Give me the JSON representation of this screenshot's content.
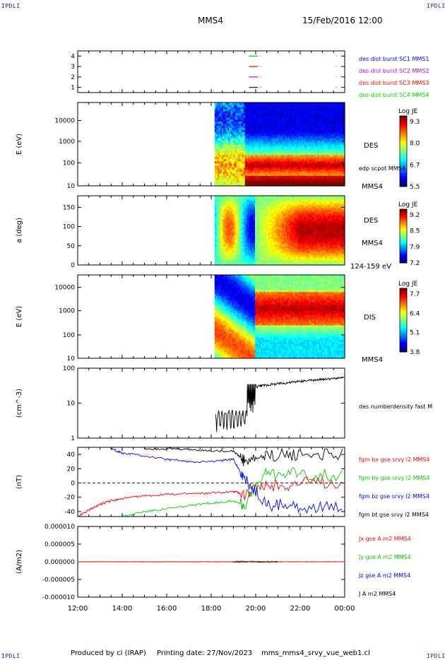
{
  "header": {
    "logo_left": "IPDLI",
    "logo_right": "IPDLI",
    "spacecraft": "MMS4",
    "datetime": "15/Feb/2016 12:00"
  },
  "footer": {
    "produced": "Produced by cl (IRAP)",
    "printing": "Printing date: 27/Nov/2023",
    "file": "mms_mms4_srvy_vue_web1.cl"
  },
  "colors": {
    "blue": "#0000ff",
    "magenta": "#d000d0",
    "red": "#ff0000",
    "green": "#00cc00",
    "black": "#000000"
  },
  "time_axis": {
    "ticks": [
      "12:00",
      "14:00",
      "16:00",
      "18:00",
      "20:00",
      "22:00",
      "00:00"
    ],
    "range_hours": [
      0,
      12
    ]
  },
  "chart_data": [
    {
      "type": "line",
      "id": "burst",
      "ylim": [
        0.5,
        4.5
      ],
      "yticks": [
        "1",
        "2",
        "3",
        "4"
      ],
      "legend": [
        {
          "text": "des dist burst SC1 MMS1",
          "color": "#0000ff"
        },
        {
          "text": "des dist burst SC2 MMS2",
          "color": "#d000d0"
        },
        {
          "text": "des dist burst SC3 MMS3",
          "color": "#ff0000"
        },
        {
          "text": "des dist burst SC4 MMS4",
          "color": "#00cc00"
        }
      ]
    },
    {
      "type": "heatmap",
      "id": "des-energy",
      "ylabel": "E (eV)",
      "yticks": [
        "10",
        "100",
        "1000",
        "10000"
      ],
      "label": "DES",
      "sublabel": "edp scpot MMS4",
      "bottom_label": "MMS4",
      "colorbar": {
        "title": "Log JE",
        "ticks": [
          "9.3",
          "8.0",
          "6.7",
          "5.5"
        ]
      }
    },
    {
      "type": "heatmap",
      "id": "des-pitch",
      "ylabel": "a (deg)",
      "yticks": [
        "0",
        "50",
        "100",
        "150"
      ],
      "label": "DES",
      "sublabel": "MMS4",
      "bottom_label": "124-159 eV",
      "colorbar": {
        "title": "Log JE",
        "ticks": [
          "9.2",
          "8.5",
          "7.9",
          "7.2"
        ]
      }
    },
    {
      "type": "heatmap",
      "id": "dis-energy",
      "ylabel": "E (eV)",
      "yticks": [
        "10",
        "100",
        "1000",
        "10000"
      ],
      "label": "DIS",
      "bottom_label": "MMS4",
      "colorbar": {
        "title": "Log JE",
        "ticks": [
          "7.7",
          "6.4",
          "5.1",
          "3.8"
        ]
      }
    },
    {
      "type": "line",
      "id": "density",
      "ylabel": "(cm^-3)",
      "yticks": [
        "1",
        "10",
        "100"
      ],
      "ylim": [
        1,
        100
      ],
      "label": "des numberdensity fast M",
      "x": [
        6.2,
        6.5,
        6.8,
        7.0,
        7.2,
        7.4,
        7.6,
        7.9,
        8.2,
        8.6,
        9.0,
        9.5,
        10.0,
        10.5,
        11.0,
        11.5,
        12.0
      ],
      "y": [
        5,
        3,
        2.5,
        3,
        5,
        2.2,
        30,
        35,
        38,
        33,
        40,
        42,
        45,
        48,
        50,
        52,
        60
      ]
    },
    {
      "type": "line",
      "id": "bfield",
      "ylabel": "(nT)",
      "yticks": [
        "40",
        "20",
        "0",
        "-20",
        "-40"
      ],
      "ylim": [
        -47,
        50
      ],
      "legend": [
        {
          "text": "fgm bx gse srvy l2 MMS4",
          "color": "#ff0000"
        },
        {
          "text": "fgm by gse srvy l2 MMS4",
          "color": "#00cc00"
        },
        {
          "text": "fgm bz gse srvy l2 MMS4",
          "color": "#0000ff"
        },
        {
          "text": "fgm bt gse srvy l2 MMS4",
          "color": "#000000"
        }
      ],
      "series": [
        {
          "name": "fgm bx gse srvy l2 MMS4",
          "color": "#ff0000",
          "x": [
            0,
            0.5,
            1.0,
            1.5,
            2.0,
            3.0,
            4.0,
            5.0,
            6.0,
            7.0,
            7.5,
            8.5,
            10.0,
            12.0
          ],
          "y": [
            -47,
            -38,
            -30,
            -25,
            -22,
            -18,
            -16,
            -15,
            -14,
            -12,
            -15,
            -5,
            0,
            2
          ]
        },
        {
          "name": "fgm by gse srvy l2 MMS4",
          "color": "#00cc00",
          "x": [
            2.0,
            3.0,
            4.0,
            5.0,
            6.0,
            7.0,
            7.5,
            8.5,
            10.0,
            12.0
          ],
          "y": [
            -47,
            -40,
            -36,
            -32,
            -28,
            -25,
            -30,
            15,
            12,
            10
          ]
        },
        {
          "name": "fgm bz gse srvy l2 MMS4",
          "color": "#0000ff",
          "x": [
            1.5,
            2.0,
            3.0,
            4.0,
            5.0,
            6.0,
            7.0,
            7.5,
            8.5,
            10.0,
            12.0
          ],
          "y": [
            48,
            42,
            38,
            33,
            30,
            30,
            33,
            5,
            -30,
            -33,
            -35
          ]
        },
        {
          "name": "fgm bt gse srvy l2 MMS4",
          "color": "#000000",
          "x": [
            3.0,
            4.0,
            5.0,
            6.0,
            7.0,
            7.5,
            8.5,
            10.0,
            12.0
          ],
          "y": [
            48,
            48,
            47,
            45,
            45,
            30,
            38,
            40,
            42
          ]
        }
      ]
    },
    {
      "type": "line",
      "id": "current",
      "ylabel": "(A/m2)",
      "yticks": [
        "0.000010",
        "0.000005",
        "0.000000",
        "-0.000005",
        "-0.000010"
      ],
      "ylim": [
        -1e-05,
        1e-05
      ],
      "legend": [
        {
          "text": "Jx gse A m2 MMS4",
          "color": "#ff0000"
        },
        {
          "text": "Jy gse A m2 MMS4",
          "color": "#00cc00"
        },
        {
          "text": "Jz gse A m2 MMS4",
          "color": "#0000ff"
        },
        {
          "text": "J A m2 MMS4",
          "color": "#000000"
        }
      ]
    }
  ]
}
